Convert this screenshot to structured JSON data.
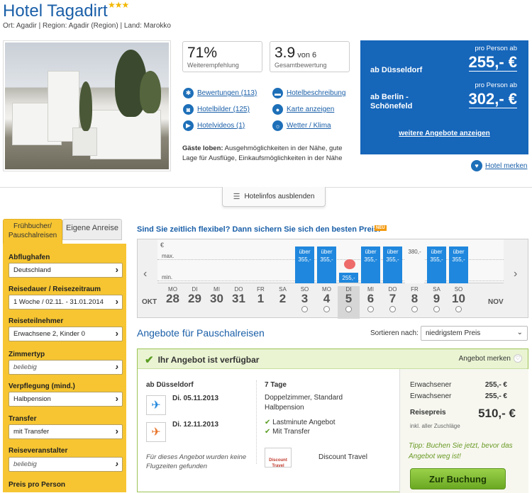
{
  "hotel": {
    "name": "Hotel Tagadirt",
    "stars": "★★★",
    "location": "Ort: Agadir | Region: Agadir (Region) | Land: Marokko"
  },
  "metrics": {
    "recommend_value": "71%",
    "recommend_label": "Weiterempfehlung",
    "rating_value": "3.9",
    "rating_suffix": "von 6",
    "rating_label": "Gesamtbewertung"
  },
  "links": {
    "reviews": "Bewertungen (113)",
    "photos": "Hotelbilder (125)",
    "videos": "Hotelvideos (1)",
    "description": "Hotelbeschreibung",
    "map": "Karte anzeigen",
    "weather": "Wetter / Klima"
  },
  "guest_praise": {
    "label": "Gäste loben:",
    "text": "Ausgehmöglichkeiten in der Nähe, gute Lage für Ausflüge, Einkaufsmöglichkeiten in der Nähe"
  },
  "prices": {
    "per_person": "pro Person ab",
    "rows": [
      {
        "from": "ab Düsseldorf",
        "amount": "255,- €"
      },
      {
        "from": "ab Berlin - Schönefeld",
        "amount": "302,- €"
      }
    ],
    "more_offers": "weitere Angebote anzeigen"
  },
  "hotel_merken": "Hotel merken",
  "hide_info": "Hotelinfos ausblenden",
  "sidebar": {
    "tab_package": "Frühbucher/ Pauschalreisen",
    "tab_own": "Eigene Anreise",
    "fields": [
      {
        "label": "Abflughafen",
        "value": "Deutschland"
      },
      {
        "label": "Reisedauer / Reisezeitraum",
        "value": "1 Woche / 02.11. - 31.01.2014"
      },
      {
        "label": "Reiseteilnehmer",
        "value": "Erwachsene 2, Kinder 0"
      },
      {
        "label": "Zimmertyp",
        "value": "beliebig"
      },
      {
        "label": "Verpflegung (mind.)",
        "value": "Halbpension"
      },
      {
        "label": "Transfer",
        "value": "mit Transfer"
      },
      {
        "label": "Reiseveranstalter",
        "value": "beliebig"
      },
      {
        "label": "Preis pro Person",
        "value": ""
      }
    ]
  },
  "flex": {
    "title": "Sind Sie zeitlich flexibel? Dann sichern Sie sich den besten Preis!",
    "badge": "NEU",
    "currency": "€",
    "max_label": "max.",
    "min_label": "min.",
    "month_left": "OKT",
    "month_right": "NOV",
    "days": [
      {
        "wd": "MO",
        "dn": "28",
        "price": ""
      },
      {
        "wd": "DI",
        "dn": "29",
        "price": ""
      },
      {
        "wd": "MI",
        "dn": "30",
        "price": ""
      },
      {
        "wd": "DO",
        "dn": "31",
        "price": ""
      },
      {
        "wd": "FR",
        "dn": "1",
        "price": ""
      },
      {
        "wd": "SA",
        "dn": "2",
        "price": ""
      },
      {
        "wd": "SO",
        "dn": "3",
        "price": "über 355,-"
      },
      {
        "wd": "MO",
        "dn": "4",
        "price": "über 355,-"
      },
      {
        "wd": "DI",
        "dn": "5",
        "price": "255,-"
      },
      {
        "wd": "MI",
        "dn": "6",
        "price": "über 355,-"
      },
      {
        "wd": "DO",
        "dn": "7",
        "price": "über 355,-"
      },
      {
        "wd": "FR",
        "dn": "8",
        "price": "380,-"
      },
      {
        "wd": "SA",
        "dn": "9",
        "price": "über 355,-"
      },
      {
        "wd": "SO",
        "dn": "10",
        "price": "über 355,-"
      }
    ]
  },
  "offers": {
    "title": "Angebote für Pauschalreisen",
    "sort_label": "Sortieren nach:",
    "sort_value": "niedrigstem Preis",
    "available": "Ihr Angebot ist verfügbar",
    "merken": "Angebot merken",
    "departure": "ab Düsseldorf",
    "outbound": "Di. 05.11.2013",
    "return": "Di. 12.11.2013",
    "no_times": "Für dieses Angebot wurden keine Flugzeiten gefunden",
    "duration": "7 Tage",
    "room": "Doppelzimmer, Standard",
    "board": "Halbpension",
    "feature1": "Lastminute Angebot",
    "feature2": "Mit Transfer",
    "operator_logo": "Discount Travel",
    "operator": "Discount Travel",
    "adult_label": "Erwachsener",
    "adult1": "255,- €",
    "adult2": "255,- €",
    "total_label": "Reisepreis",
    "total": "510,- €",
    "incl": "inkl. aller Zuschläge",
    "tip": "Tipp: Buchen Sie jetzt, bevor das Angebot weg ist!",
    "book": "Zur Buchung"
  }
}
